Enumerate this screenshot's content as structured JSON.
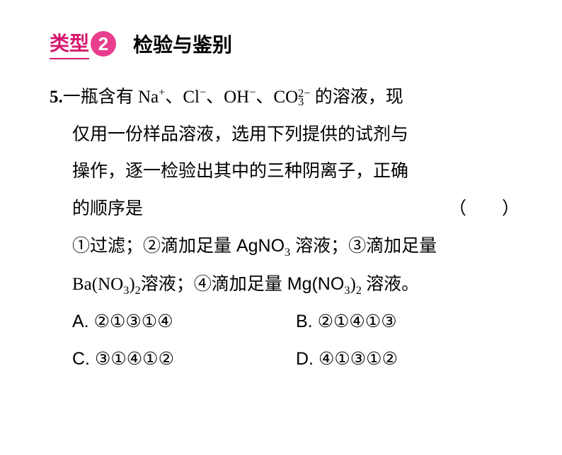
{
  "header": {
    "type_label": "类型",
    "type_number": "2",
    "type_title": "检验与鉴别",
    "colors": {
      "accent": "#d6186f",
      "badge_bg": "#e83e8c",
      "badge_fg": "#ffffff",
      "text": "#000000",
      "background": "#ffffff"
    },
    "fontsize": {
      "header": 28,
      "body": 25
    }
  },
  "question": {
    "number": "5.",
    "stem_line1_prefix": "一瓶含有 Na",
    "stem_line1_mid1": "、Cl",
    "stem_line1_mid2": "、OH",
    "stem_line1_mid3": "、CO",
    "stem_line1_suffix": " 的溶液，现",
    "stem_line2": "仅用一份样品溶液，选用下列提供的试剂与",
    "stem_line3": "操作，逐一检验出其中的三种阴离子，正确",
    "stem_line4": "的顺序是",
    "paren": "（　　）",
    "items_line1_a": "①过滤；②滴加足量 AgNO",
    "items_line1_b": " 溶液；③滴加足量",
    "items_line2_a": "Ba(NO",
    "items_line2_b": ")",
    "items_line2_c": "溶液；④滴加足量 Mg(NO",
    "items_line2_d": ")",
    "items_line2_e": " 溶液。",
    "sup_plus": "+",
    "sup_minus": "−",
    "co3_top": "2−",
    "co3_bot": "3",
    "sub_3": "3",
    "sub_2": "2",
    "options": {
      "A": "A. ②①③①④",
      "B": "B. ②①④①③",
      "C": "C. ③①④①②",
      "D": "D. ④①③①②"
    }
  }
}
